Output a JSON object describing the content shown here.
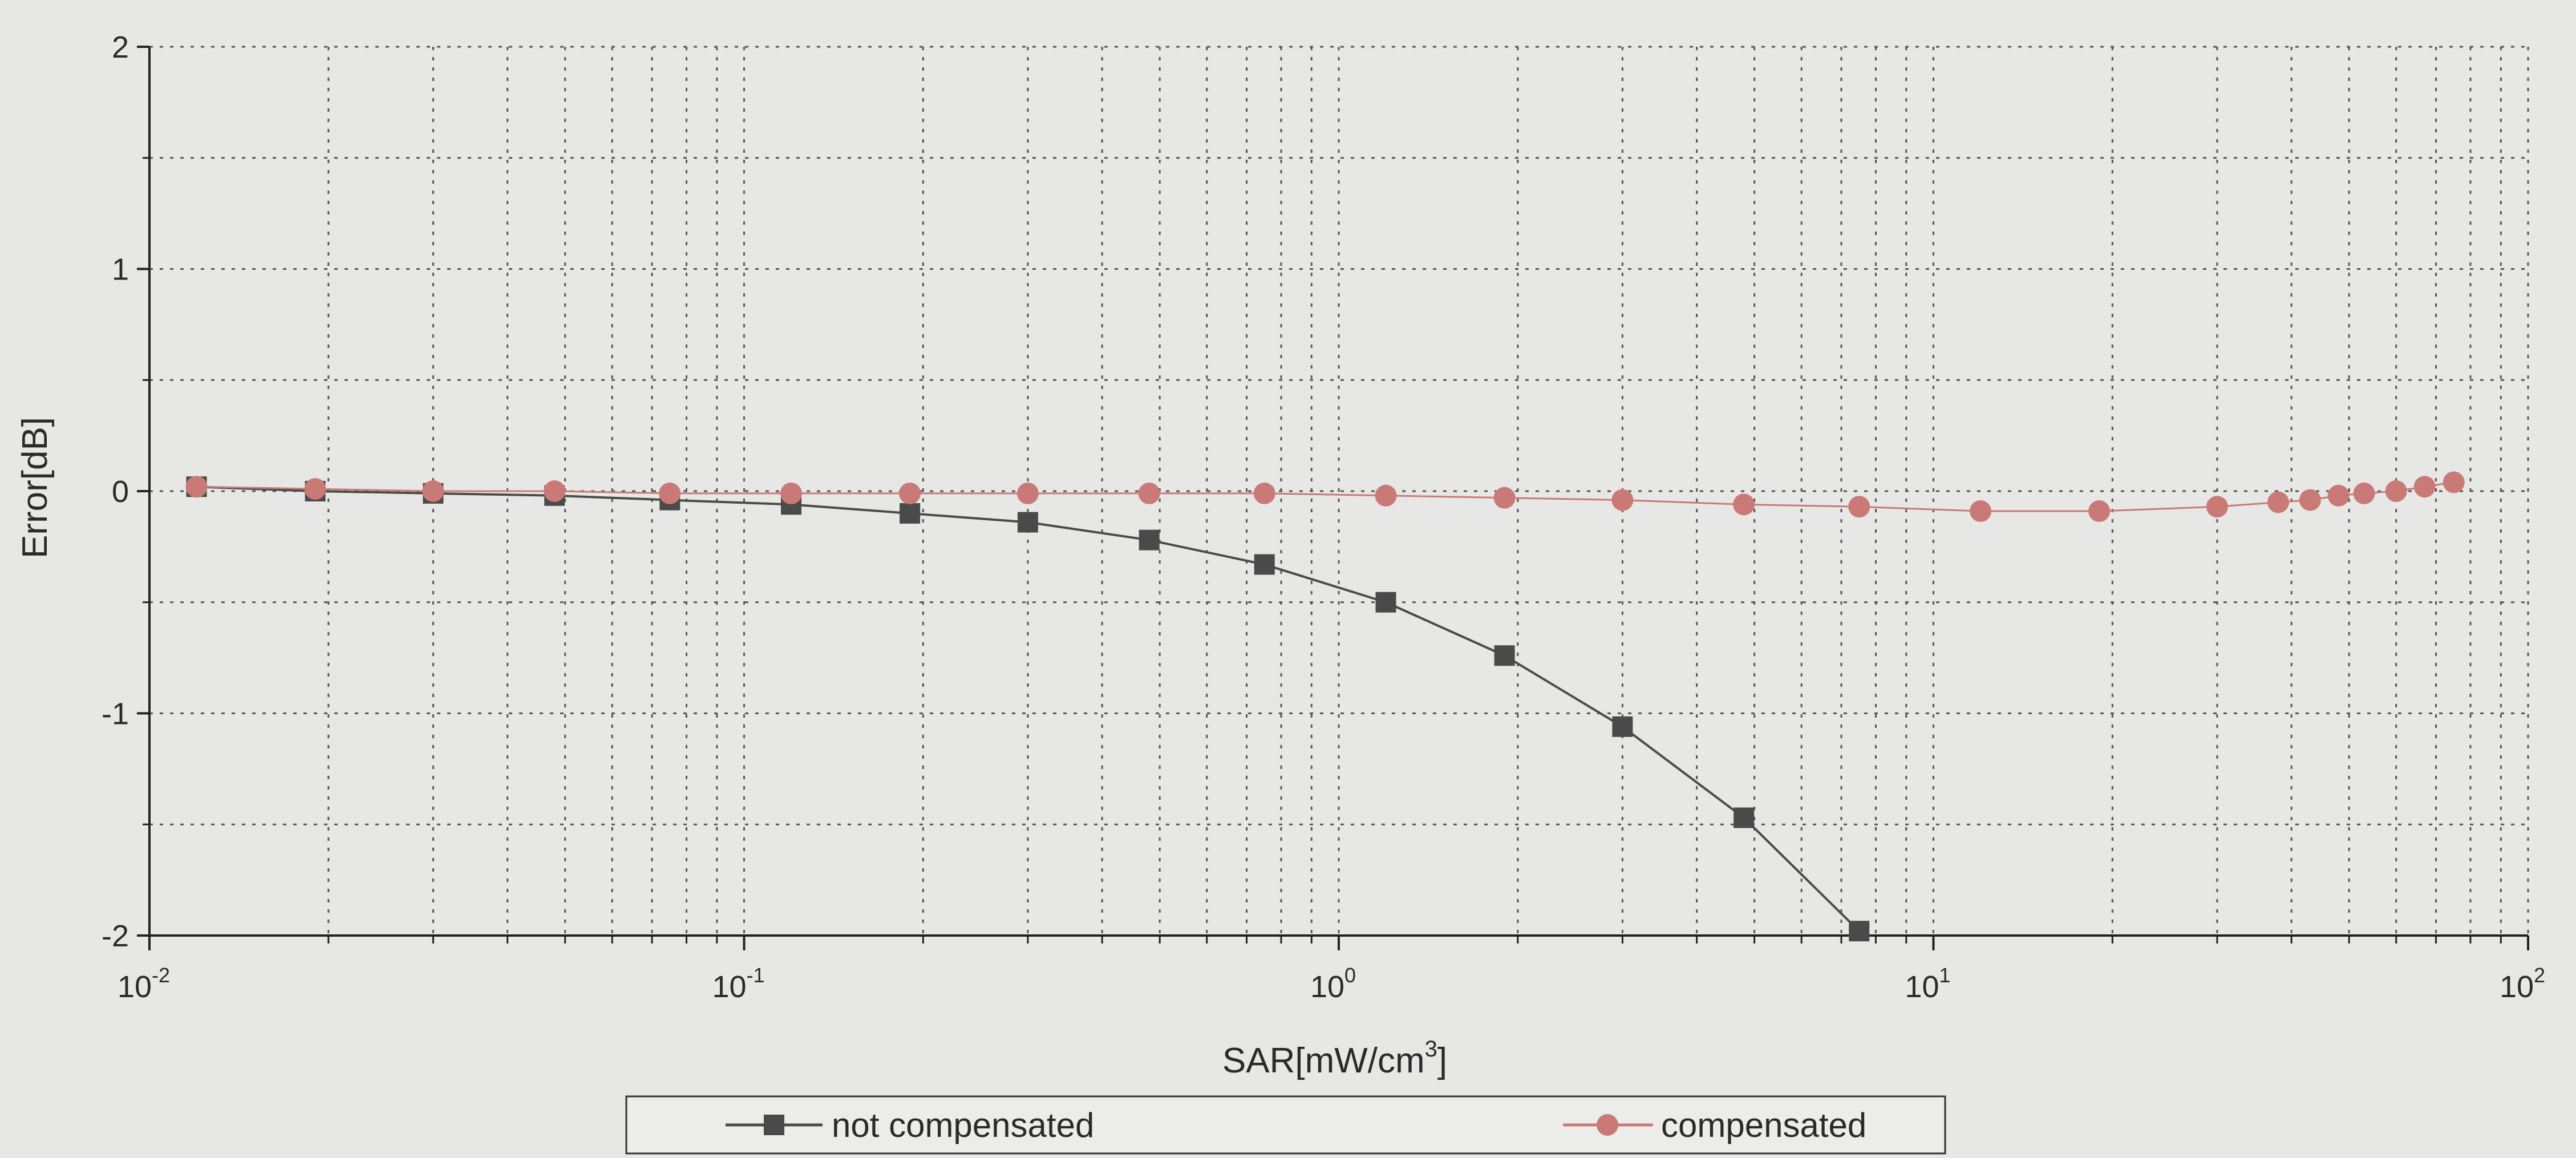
{
  "chart_data": {
    "type": "line",
    "xlabel": "SAR[mW/cm",
    "xlabel_sup": "3",
    "xlabel_suffix": "]",
    "ylabel": "Error[dB]",
    "xscale": "log",
    "xlim": [
      0.01,
      100
    ],
    "ylim": [
      -2,
      2
    ],
    "x_ticks": [
      {
        "base": "10",
        "exp": "-2"
      },
      {
        "base": "10",
        "exp": "-1"
      },
      {
        "base": "10",
        "exp": "0"
      },
      {
        "base": "10",
        "exp": "1"
      },
      {
        "base": "10",
        "exp": "2"
      }
    ],
    "y_ticks": [
      {
        "value": 2,
        "label": "2"
      },
      {
        "value": 1,
        "label": "1"
      },
      {
        "value": 0,
        "label": "0"
      },
      {
        "value": -1,
        "label": "-1"
      },
      {
        "value": -2,
        "label": "-2"
      }
    ],
    "grid": true,
    "legend_position": "bottom",
    "series": [
      {
        "name": "not compensated",
        "color": "#4a4a4a",
        "marker": "square",
        "x": [
          0.012,
          0.019,
          0.03,
          0.048,
          0.075,
          0.12,
          0.19,
          0.3,
          0.48,
          0.75,
          1.2,
          1.9,
          3.0,
          4.8,
          7.5
        ],
        "y": [
          0.02,
          0.0,
          -0.01,
          -0.02,
          -0.04,
          -0.06,
          -0.1,
          -0.14,
          -0.22,
          -0.33,
          -0.5,
          -0.74,
          -1.06,
          -1.47,
          -1.98
        ]
      },
      {
        "name": "compensated",
        "color": "#c97a76",
        "marker": "circle",
        "x": [
          0.012,
          0.019,
          0.03,
          0.048,
          0.075,
          0.12,
          0.19,
          0.3,
          0.48,
          0.75,
          1.2,
          1.9,
          3.0,
          4.8,
          7.5,
          12,
          19,
          30,
          38,
          43,
          48,
          53,
          60,
          67,
          75
        ],
        "y": [
          0.02,
          0.01,
          0.0,
          0.0,
          -0.01,
          -0.01,
          -0.01,
          -0.01,
          -0.01,
          -0.01,
          -0.02,
          -0.03,
          -0.04,
          -0.06,
          -0.07,
          -0.09,
          -0.09,
          -0.07,
          -0.05,
          -0.04,
          -0.02,
          -0.01,
          0.0,
          0.02,
          0.04
        ]
      }
    ]
  }
}
